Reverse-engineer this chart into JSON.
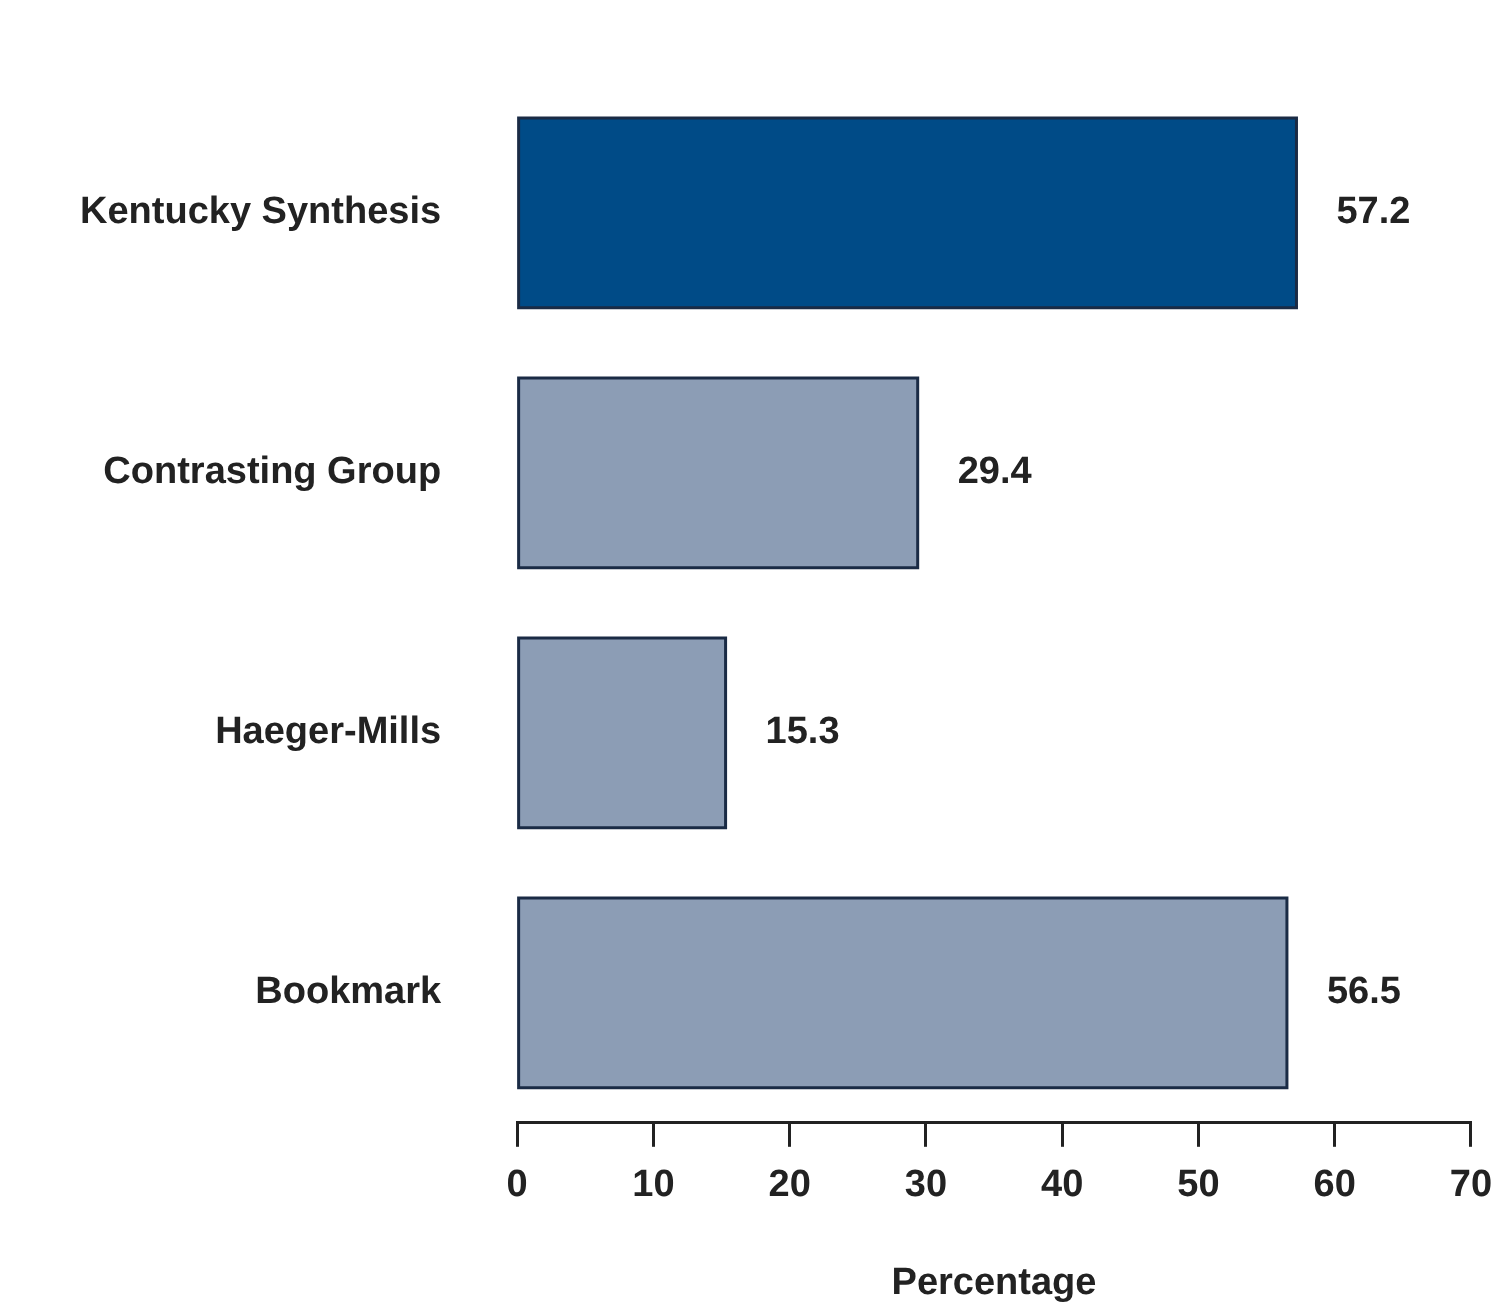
{
  "chart_data": {
    "type": "bar",
    "orientation": "horizontal",
    "categories": [
      "Kentucky Synthesis",
      "Contrasting Group",
      "Haeger-Mills",
      "Bookmark"
    ],
    "values": [
      57.2,
      29.4,
      15.3,
      56.5
    ],
    "colors": [
      "#004b87",
      "#8c9db5",
      "#8c9db5",
      "#8c9db5"
    ],
    "xlabel": "Percentage",
    "xlim": [
      0,
      70
    ],
    "xticks": [
      0,
      10,
      20,
      30,
      40,
      50,
      60,
      70
    ],
    "data_labels": true,
    "grid": false,
    "legend": false
  }
}
